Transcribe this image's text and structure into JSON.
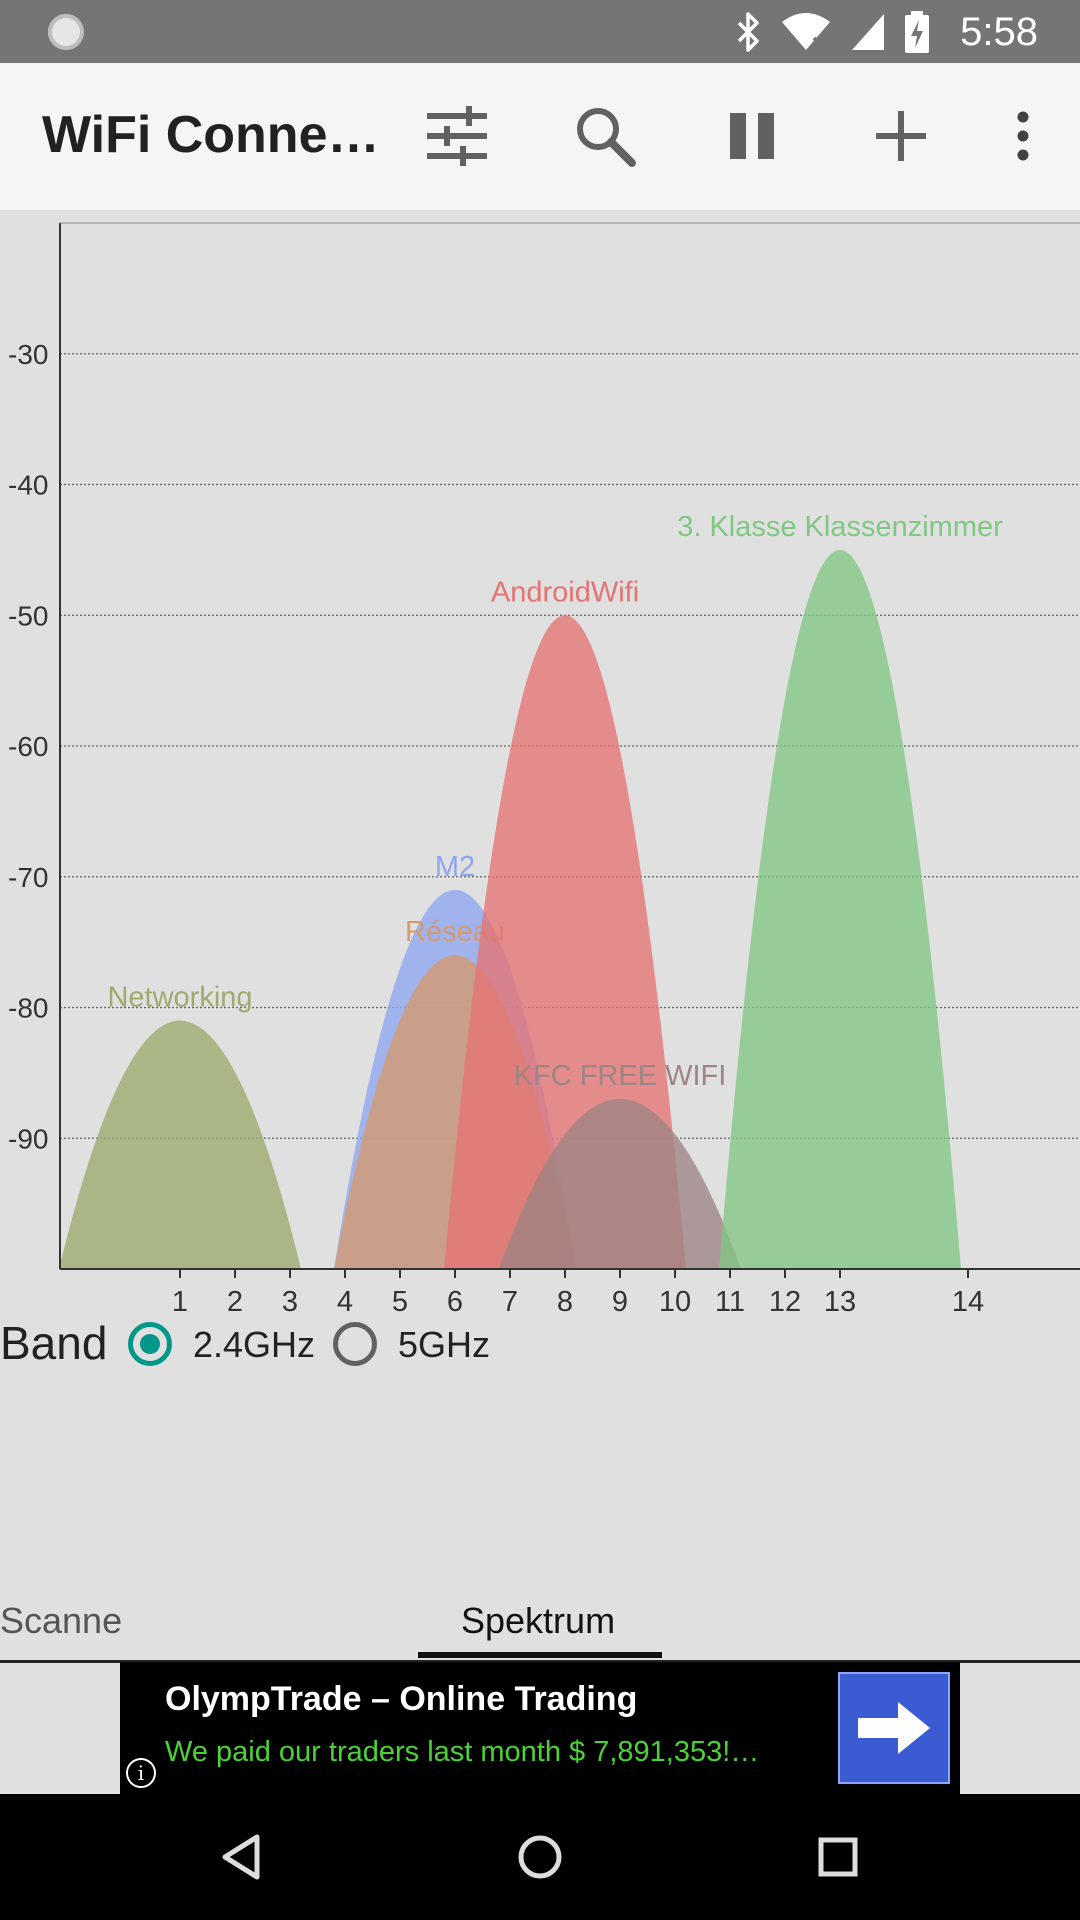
{
  "status_bar": {
    "time": "5:58",
    "icons": [
      "sync-icon",
      "bluetooth-icon",
      "wifi-icon",
      "cell-signal-icon",
      "battery-charging-icon"
    ]
  },
  "app_bar": {
    "title": "WiFi Conne…",
    "actions": [
      "filter-icon",
      "search-icon",
      "pause-icon",
      "add-icon",
      "more-vert-icon"
    ]
  },
  "chart_data": {
    "type": "area",
    "y_ticks": [
      "-30",
      "-40",
      "-50",
      "-60",
      "-70",
      "-80",
      "-90"
    ],
    "ylim": [
      -100,
      -20
    ],
    "x_ticks": [
      "1",
      "2",
      "3",
      "4",
      "5",
      "6",
      "7",
      "8",
      "9",
      "10",
      "11",
      "12",
      "13",
      "14"
    ],
    "grid": true,
    "series": [
      {
        "name": "Networking",
        "channel": 1,
        "peak_dbm": -81,
        "color": "#9cab6e"
      },
      {
        "name": "M2",
        "channel": 6,
        "peak_dbm": -71,
        "color": "#8ea6f0"
      },
      {
        "name": "Réseau",
        "channel": 6,
        "peak_dbm": -76,
        "color": "#d69a6e"
      },
      {
        "name": "AndroidWifi",
        "channel": 8,
        "peak_dbm": -50,
        "color": "#e57373"
      },
      {
        "name": "KFC FREE WIFI",
        "channel": 9,
        "peak_dbm": -87,
        "color": "#9e8484"
      },
      {
        "name": "3. Klasse Klassenzimmer",
        "channel": 13,
        "peak_dbm": -45,
        "color": "#81c784"
      }
    ]
  },
  "band": {
    "label": "Band",
    "options": [
      {
        "label": "2.4GHz",
        "selected": true
      },
      {
        "label": "5GHz",
        "selected": false
      }
    ]
  },
  "tabs": [
    {
      "label": "Scanne",
      "active": false
    },
    {
      "label": "Spektrum",
      "active": true
    }
  ],
  "ad": {
    "headline": "OlympTrade – Online Trading",
    "subline": "We paid our traders last month $ 7,891,353!…",
    "info": "i"
  },
  "nav": [
    "back-icon",
    "home-icon",
    "recents-icon"
  ]
}
